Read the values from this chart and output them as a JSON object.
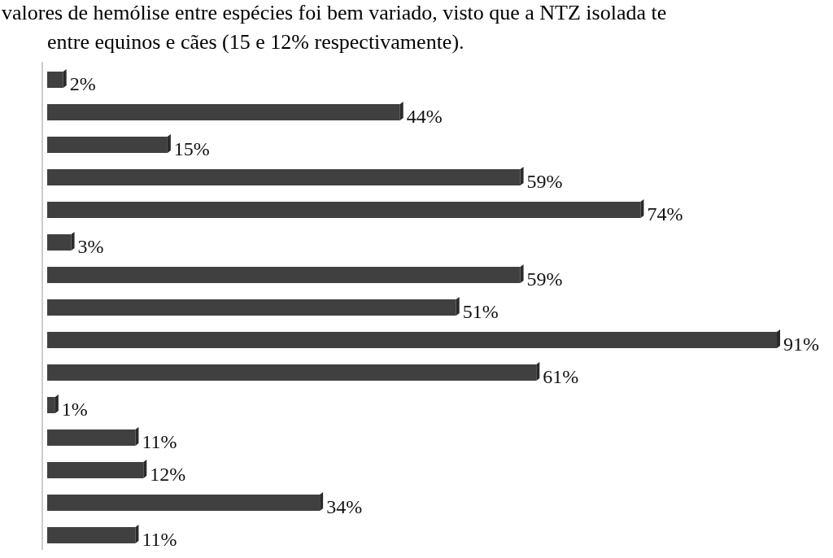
{
  "chart_data": {
    "type": "bar",
    "orientation": "horizontal",
    "annotations": [
      "valores de hemólise entre espécies foi bem variado, visto que a NTZ isolada te",
      "entre equinos e cães (15 e 12% respectivamente)."
    ],
    "categories": [
      null,
      null,
      null,
      null,
      null,
      null,
      null,
      null,
      null,
      null,
      null,
      null,
      null,
      null,
      null
    ],
    "values": [
      2,
      44,
      15,
      59,
      74,
      3,
      59,
      51,
      91,
      61,
      1,
      11,
      12,
      34,
      11
    ],
    "value_labels": [
      "2%",
      "44%",
      "15%",
      "59%",
      "74%",
      "3%",
      "59%",
      "51%",
      "91%",
      "61%",
      "1%",
      "11%",
      "12%",
      "34%",
      "11%"
    ],
    "color": "#404040"
  }
}
